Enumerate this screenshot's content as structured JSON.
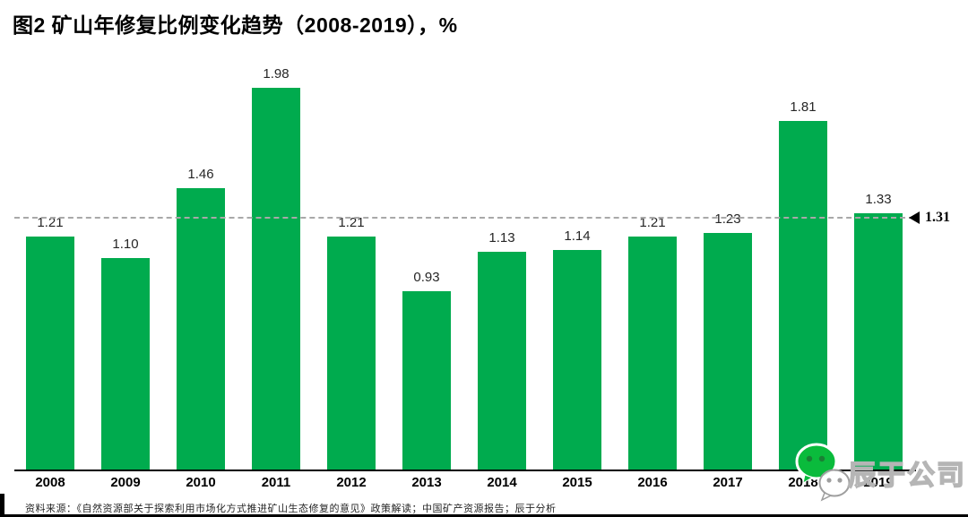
{
  "title": "图2 矿山年修复比例变化趋势（2008-2019），%",
  "chart_data": {
    "type": "bar",
    "title": "图2 矿山年修复比例变化趋势（2008-2019），%",
    "unit": "%",
    "categories": [
      "2008",
      "2009",
      "2010",
      "2011",
      "2012",
      "2013",
      "2014",
      "2015",
      "2016",
      "2017",
      "2018",
      "2019"
    ],
    "values": [
      1.21,
      1.1,
      1.46,
      1.98,
      1.21,
      0.93,
      1.13,
      1.14,
      1.21,
      1.23,
      1.81,
      1.33
    ],
    "value_labels": [
      "1.21",
      "1.10",
      "1.46",
      "1.98",
      "1.21",
      "0.93",
      "1.13",
      "1.14",
      "1.21",
      "1.23",
      "1.81",
      "1.33"
    ],
    "reference_line": {
      "value": 1.31,
      "label": "1.31"
    },
    "bar_color": "#00AB4E",
    "reference_line_color": "#A8A8A8",
    "axis_color": "#000000",
    "ylim": [
      0,
      2.1
    ],
    "grid": false,
    "legend": false,
    "data_labels": true
  },
  "footer": {
    "source": "资料来源：《自然资源部关于探索利用市场化方式推进矿山生态修复的意见》政策解读；中国矿产资源报告；辰于分析"
  },
  "watermark": {
    "text": "辰于公司",
    "icon": "wechat-icon",
    "icon_color": "#0ABB3C"
  }
}
